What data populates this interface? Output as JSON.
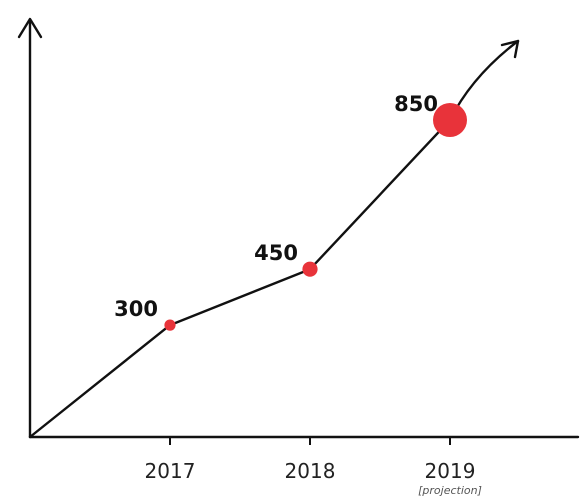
{
  "chart_data": {
    "type": "line",
    "x": [
      "2017",
      "2018",
      "2019"
    ],
    "values": [
      300,
      450,
      850
    ],
    "data_labels": [
      "300",
      "450",
      "850"
    ],
    "annotations": [
      {
        "x": "2019",
        "text": "[projection]"
      }
    ],
    "title": "",
    "xlabel": "",
    "ylabel": "",
    "ylim": [
      0,
      1200
    ],
    "grid": false,
    "legend": "none",
    "marker_size_scales_with_value": true,
    "colors": {
      "line": "#111111",
      "marker": "#e8333a",
      "text": "#222222"
    }
  }
}
